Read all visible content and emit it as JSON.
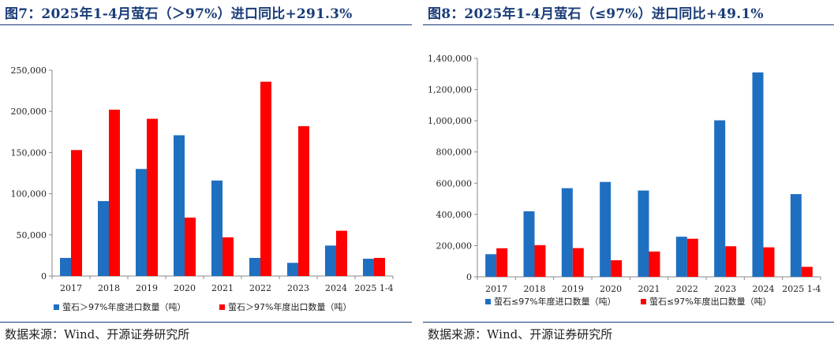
{
  "charts": [
    {
      "title": "图7：2025年1-4月萤石（＞97%）进口同比+291.3%",
      "source": "数据来源：Wind、开源证券研究所",
      "chart_data": {
        "type": "bar",
        "categories": [
          "2017",
          "2018",
          "2019",
          "2020",
          "2021",
          "2022",
          "2023",
          "2024",
          "2025 1-4"
        ],
        "series": [
          {
            "name": "萤石＞97%年度进口数量（吨）",
            "color": "#1f6fc0",
            "values": [
              22000,
              91000,
              130000,
              171000,
              116000,
              22000,
              16000,
              37000,
              21000
            ]
          },
          {
            "name": "萤石＞97%年度出口数量（吨）",
            "color": "#ff0000",
            "values": [
              153000,
              202000,
              191000,
              71000,
              47000,
              236000,
              182000,
              55000,
              22000
            ]
          }
        ],
        "ylim": [
          0,
          250000
        ],
        "yticks": [
          "0",
          "50,000",
          "100,000",
          "150,000",
          "200,000",
          "250,000"
        ],
        "ytick_values": [
          0,
          50000,
          100000,
          150000,
          200000,
          250000
        ],
        "legend": "bottom",
        "grid": false
      }
    },
    {
      "title": "图8：2025年1-4月萤石（≤97%）进口同比+49.1%",
      "source": "数据来源：Wind、开源证券研究所",
      "chart_data": {
        "type": "bar",
        "categories": [
          "2017",
          "2018",
          "2019",
          "2020",
          "2021",
          "2022",
          "2023",
          "2024",
          "2025 1-4"
        ],
        "series": [
          {
            "name": "萤石≤97%年度进口数量（吨）",
            "color": "#1f6fc0",
            "values": [
              145000,
              420000,
              568000,
              608000,
              553000,
              257000,
              1003000,
              1310000,
              530000
            ]
          },
          {
            "name": "萤石≤97%年度出口数量（吨）",
            "color": "#ff0000",
            "values": [
              183000,
              203000,
              184000,
              106000,
              162000,
              244000,
              196000,
              189000,
              64000
            ]
          }
        ],
        "ylim": [
          0,
          1400000
        ],
        "yticks": [
          "0",
          "200,000",
          "400,000",
          "600,000",
          "800,000",
          "1,000,000",
          "1,200,000",
          "1,400,000"
        ],
        "ytick_values": [
          0,
          200000,
          400000,
          600000,
          800000,
          1000000,
          1200000,
          1400000
        ],
        "legend": "bottom",
        "grid": false
      }
    }
  ]
}
